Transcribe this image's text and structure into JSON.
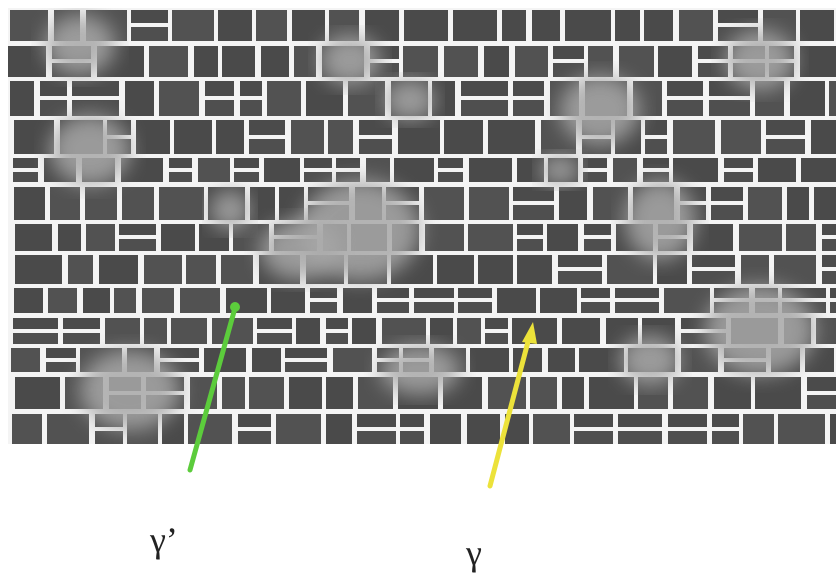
{
  "annotations": [
    {
      "label": "γ’"
    },
    {
      "label": "γ"
    }
  ]
}
